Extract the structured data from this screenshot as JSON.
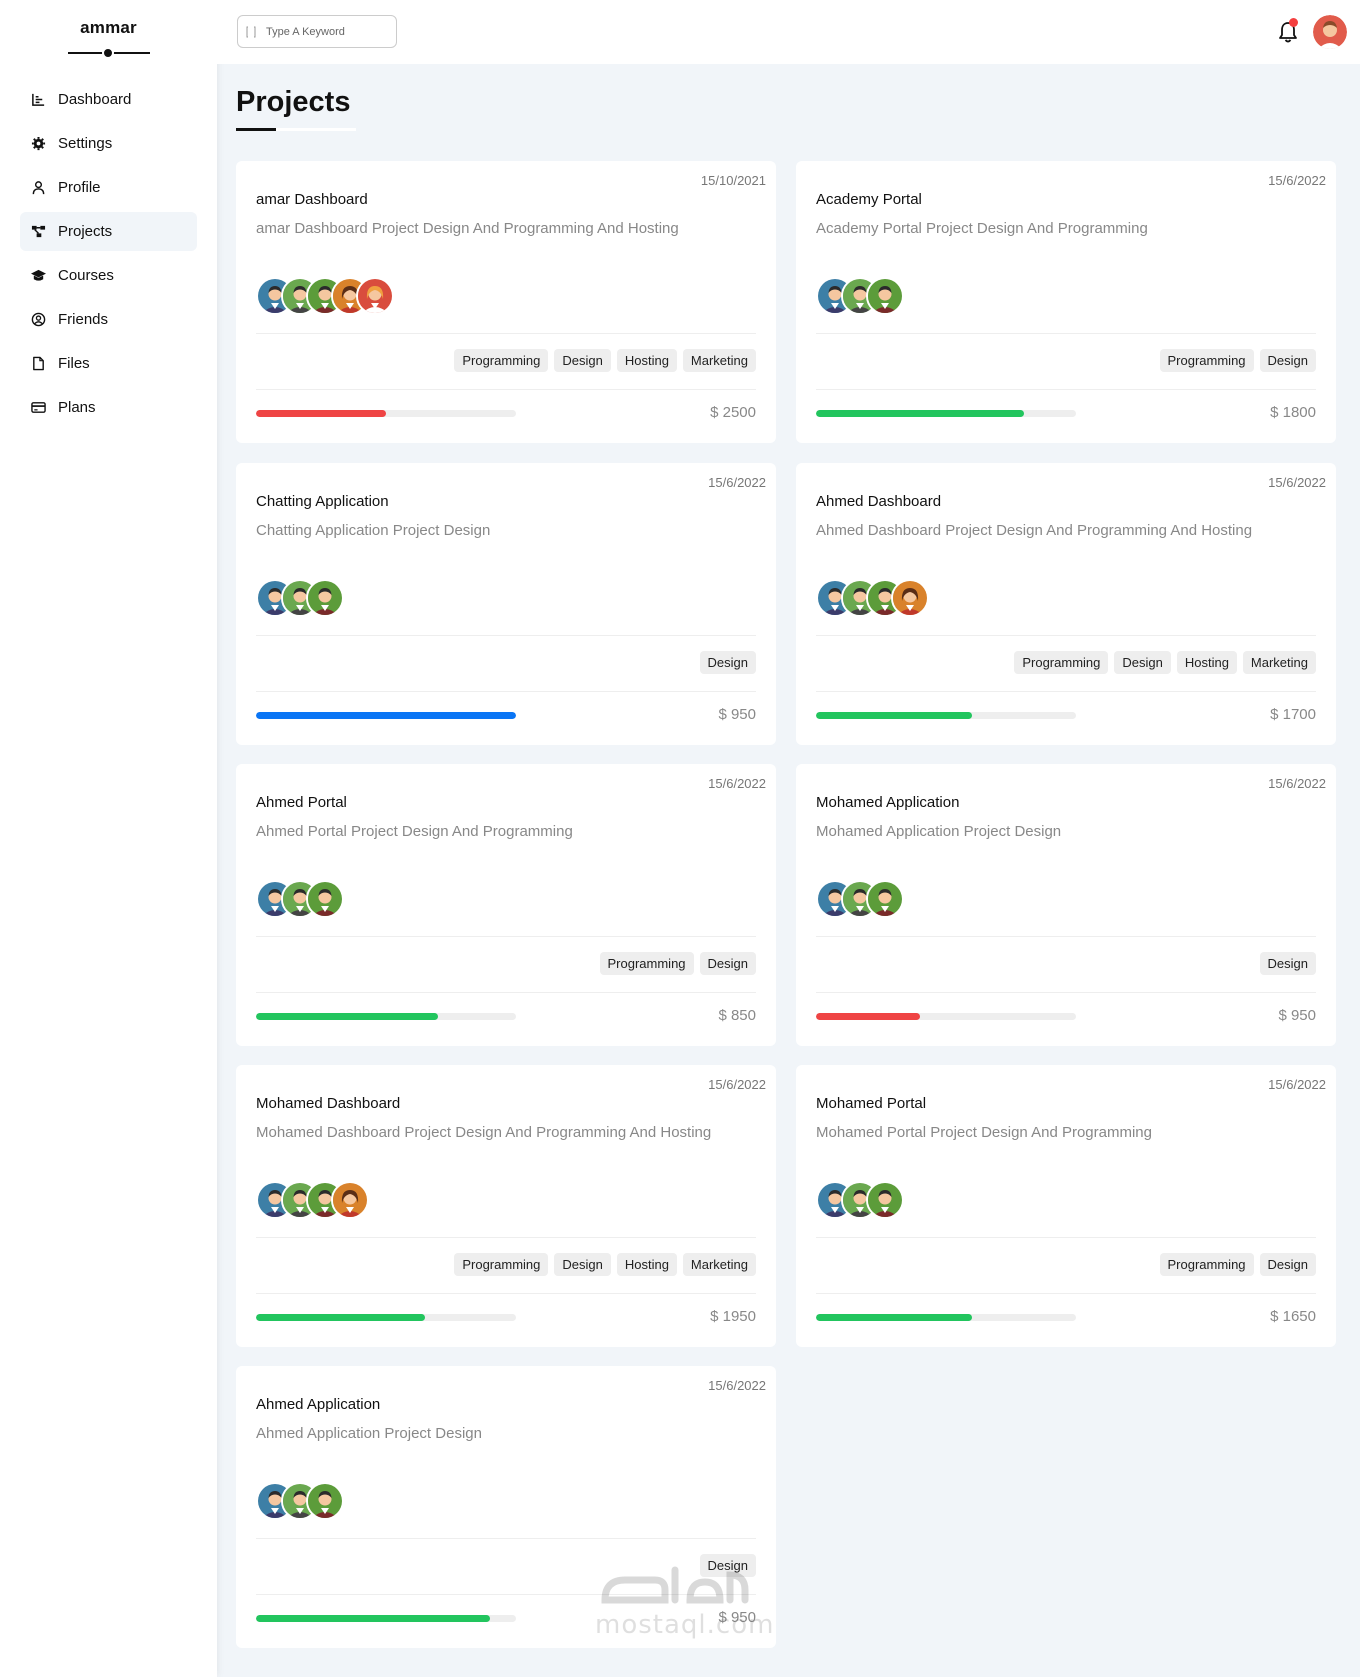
{
  "sidebar": {
    "brand": "ammar",
    "items": [
      {
        "label": "Dashboard",
        "icon": "chart-icon",
        "active": false
      },
      {
        "label": "Settings",
        "icon": "gear-icon",
        "active": false
      },
      {
        "label": "Profile",
        "icon": "user-icon",
        "active": false
      },
      {
        "label": "Projects",
        "icon": "diagram-icon",
        "active": true
      },
      {
        "label": "Courses",
        "icon": "graduation-cap-icon",
        "active": false
      },
      {
        "label": "Friends",
        "icon": "user-circle-icon",
        "active": false
      },
      {
        "label": "Files",
        "icon": "file-icon",
        "active": false
      },
      {
        "label": "Plans",
        "icon": "credit-card-icon",
        "active": false
      }
    ]
  },
  "header": {
    "search_placeholder": "Type A Keyword"
  },
  "main": {
    "title": "Projects"
  },
  "colors": {
    "red": "#ef4444",
    "green": "#22c55e",
    "blue": "#0a75f5"
  },
  "projects": [
    {
      "date": "15/10/2021",
      "name": "amar Dashboard",
      "desc": "amar Dashboard Project Design And Programming And Hosting",
      "members": 5,
      "tags": [
        "Programming",
        "Design",
        "Hosting",
        "Marketing"
      ],
      "progress": 0.5,
      "color": "red",
      "price": "$ 2500"
    },
    {
      "date": "15/6/2022",
      "name": "Academy Portal",
      "desc": "Academy Portal Project Design And Programming",
      "members": 3,
      "tags": [
        "Programming",
        "Design"
      ],
      "progress": 0.8,
      "color": "green",
      "price": "$ 1800"
    },
    {
      "date": "15/6/2022",
      "name": "Chatting Application",
      "desc": "Chatting Application Project Design",
      "members": 3,
      "tags": [
        "Design"
      ],
      "progress": 1.0,
      "color": "blue",
      "price": "$ 950"
    },
    {
      "date": "15/6/2022",
      "name": "Ahmed Dashboard",
      "desc": "Ahmed Dashboard Project Design And Programming And Hosting",
      "members": 4,
      "tags": [
        "Programming",
        "Design",
        "Hosting",
        "Marketing"
      ],
      "progress": 0.6,
      "color": "green",
      "price": "$ 1700"
    },
    {
      "date": "15/6/2022",
      "name": "Ahmed Portal",
      "desc": "Ahmed Portal Project Design And Programming",
      "members": 3,
      "tags": [
        "Programming",
        "Design"
      ],
      "progress": 0.7,
      "color": "green",
      "price": "$ 850"
    },
    {
      "date": "15/6/2022",
      "name": "Mohamed Application",
      "desc": "Mohamed Application Project Design",
      "members": 3,
      "tags": [
        "Design"
      ],
      "progress": 0.4,
      "color": "red",
      "price": "$ 950"
    },
    {
      "date": "15/6/2022",
      "name": "Mohamed Dashboard",
      "desc": "Mohamed Dashboard Project Design And Programming And Hosting",
      "members": 4,
      "tags": [
        "Programming",
        "Design",
        "Hosting",
        "Marketing"
      ],
      "progress": 0.65,
      "color": "green",
      "price": "$ 1950"
    },
    {
      "date": "15/6/2022",
      "name": "Mohamed Portal",
      "desc": "Mohamed Portal Project Design And Programming",
      "members": 3,
      "tags": [
        "Programming",
        "Design"
      ],
      "progress": 0.6,
      "color": "green",
      "price": "$ 1650"
    },
    {
      "date": "15/6/2022",
      "name": "Ahmed Application",
      "desc": "Ahmed Application Project Design",
      "members": 3,
      "tags": [
        "Design"
      ],
      "progress": 0.9,
      "color": "green",
      "price": "$ 950"
    }
  ],
  "watermark": "mostaql.com"
}
